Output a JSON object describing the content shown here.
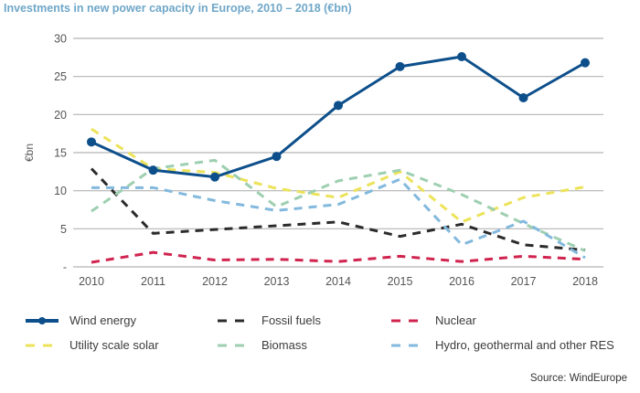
{
  "chart_data": {
    "type": "line",
    "title": "Investments in new power capacity in Europe, 2010 – 2018 (€bn)",
    "xlabel": "",
    "ylabel": "€bn",
    "ylim": [
      0,
      30
    ],
    "yticks": [
      0,
      5,
      10,
      15,
      20,
      25,
      30
    ],
    "ytick_labels": [
      "-",
      "5",
      "10",
      "15",
      "20",
      "25",
      "30"
    ],
    "categories": [
      "2010",
      "2011",
      "2012",
      "2013",
      "2014",
      "2015",
      "2016",
      "2017",
      "2018"
    ],
    "grid": true,
    "legend_position": "bottom",
    "series": [
      {
        "name": "Wind energy",
        "color": "#0d4f8b",
        "style": "solid-markers",
        "values": [
          16.4,
          12.7,
          11.8,
          14.5,
          21.2,
          26.3,
          27.6,
          22.2,
          26.8
        ]
      },
      {
        "name": "Fossil fuels",
        "color": "#2b2b2b",
        "style": "dashed",
        "values": [
          12.9,
          4.4,
          4.9,
          5.4,
          5.9,
          4.0,
          5.6,
          2.9,
          2.2
        ]
      },
      {
        "name": "Nuclear",
        "color": "#d0234e",
        "style": "dashed",
        "values": [
          0.6,
          1.9,
          0.9,
          1.0,
          0.7,
          1.4,
          0.7,
          1.4,
          1.0
        ]
      },
      {
        "name": "Utility scale solar",
        "color": "#ece35a",
        "style": "dashed",
        "values": [
          18.1,
          12.9,
          12.4,
          10.3,
          9.1,
          12.5,
          5.9,
          9.1,
          10.5
        ]
      },
      {
        "name": "Biomass",
        "color": "#9dcfb0",
        "style": "dashed",
        "values": [
          7.3,
          12.9,
          14.0,
          7.9,
          11.3,
          12.7,
          9.5,
          5.7,
          2.1
        ]
      },
      {
        "name": "Hydro, geothermal and other RES",
        "color": "#82b9dd",
        "style": "dashed",
        "values": [
          10.4,
          10.4,
          8.7,
          7.4,
          8.2,
          11.5,
          2.9,
          6.0,
          1.2
        ]
      }
    ],
    "source": "Source: WindEurope"
  }
}
